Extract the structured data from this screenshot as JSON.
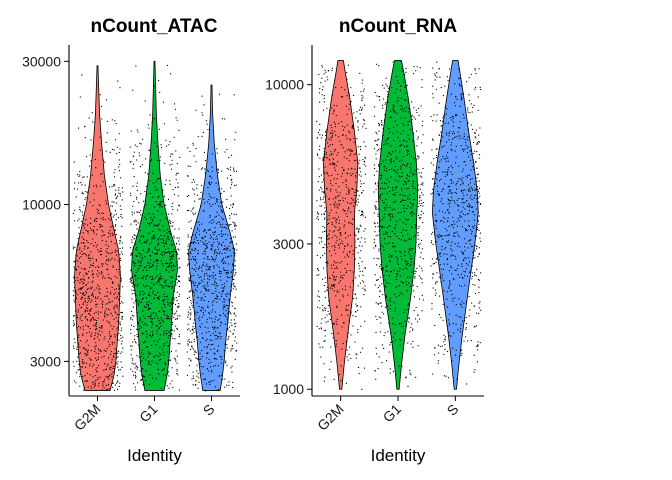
{
  "chart_data": [
    {
      "type": "violin",
      "title": "nCount_ATAC",
      "xlabel": "Identity",
      "ylabel": "",
      "y_scale": "log",
      "ylim": [
        2300,
        34000
      ],
      "yticks": [
        3000,
        10000,
        30000
      ],
      "ytick_labels": [
        "3000",
        "10000",
        "30000"
      ],
      "categories": [
        "G2M",
        "G1",
        "S"
      ],
      "colors": [
        "#F8766D",
        "#00BA38",
        "#619CFF"
      ],
      "jitter_points": true,
      "series": [
        {
          "category": "G2M",
          "min": 2400,
          "max": 29000,
          "density_profile": [
            [
              2400,
              0.55
            ],
            [
              2700,
              0.72
            ],
            [
              3000,
              0.8
            ],
            [
              3500,
              0.86
            ],
            [
              4000,
              0.92
            ],
            [
              5000,
              0.97
            ],
            [
              5800,
              1.0
            ],
            [
              7000,
              0.92
            ],
            [
              8500,
              0.68
            ],
            [
              10000,
              0.48
            ],
            [
              12500,
              0.3
            ],
            [
              16000,
              0.18
            ],
            [
              20000,
              0.09
            ],
            [
              29000,
              0.02
            ]
          ]
        },
        {
          "category": "G1",
          "min": 2400,
          "max": 30000,
          "density_profile": [
            [
              2400,
              0.42
            ],
            [
              2700,
              0.55
            ],
            [
              3000,
              0.62
            ],
            [
              3500,
              0.68
            ],
            [
              4000,
              0.74
            ],
            [
              5000,
              0.82
            ],
            [
              6000,
              1.0
            ],
            [
              7000,
              0.96
            ],
            [
              8000,
              0.72
            ],
            [
              10000,
              0.42
            ],
            [
              12500,
              0.25
            ],
            [
              16000,
              0.15
            ],
            [
              20000,
              0.08
            ],
            [
              30000,
              0.02
            ]
          ]
        },
        {
          "category": "S",
          "min": 2400,
          "max": 25000,
          "density_profile": [
            [
              2400,
              0.38
            ],
            [
              2700,
              0.48
            ],
            [
              3000,
              0.55
            ],
            [
              3500,
              0.62
            ],
            [
              4000,
              0.7
            ],
            [
              5000,
              0.82
            ],
            [
              6000,
              0.95
            ],
            [
              7000,
              1.0
            ],
            [
              8000,
              0.82
            ],
            [
              10000,
              0.45
            ],
            [
              12500,
              0.26
            ],
            [
              16000,
              0.12
            ],
            [
              20000,
              0.05
            ],
            [
              25000,
              0.02
            ]
          ]
        }
      ]
    },
    {
      "type": "violin",
      "title": "nCount_RNA",
      "xlabel": "Identity",
      "ylabel": "",
      "y_scale": "log",
      "ylim": [
        950,
        13500
      ],
      "yticks": [
        1000,
        3000,
        10000
      ],
      "ytick_labels": [
        "1000",
        "3000",
        "10000"
      ],
      "categories": [
        "G2M",
        "G1",
        "S"
      ],
      "colors": [
        "#F8766D",
        "#00BA38",
        "#619CFF"
      ],
      "jitter_points": true,
      "series": [
        {
          "category": "G2M",
          "min": 1000,
          "max": 12000,
          "density_profile": [
            [
              1000,
              0.05
            ],
            [
              1200,
              0.15
            ],
            [
              1500,
              0.3
            ],
            [
              2000,
              0.52
            ],
            [
              2500,
              0.6
            ],
            [
              3000,
              0.62
            ],
            [
              3800,
              0.6
            ],
            [
              4500,
              0.7
            ],
            [
              5500,
              0.75
            ],
            [
              7000,
              0.6
            ],
            [
              9000,
              0.4
            ],
            [
              11000,
              0.2
            ],
            [
              12000,
              0.12
            ]
          ]
        },
        {
          "category": "G1",
          "min": 1000,
          "max": 12000,
          "density_profile": [
            [
              1000,
              0.05
            ],
            [
              1200,
              0.15
            ],
            [
              1500,
              0.3
            ],
            [
              2000,
              0.55
            ],
            [
              2500,
              0.7
            ],
            [
              3000,
              0.78
            ],
            [
              3800,
              0.82
            ],
            [
              4500,
              0.86
            ],
            [
              5500,
              0.8
            ],
            [
              7000,
              0.65
            ],
            [
              9000,
              0.45
            ],
            [
              11000,
              0.25
            ],
            [
              12000,
              0.15
            ]
          ]
        },
        {
          "category": "S",
          "min": 1000,
          "max": 12000,
          "density_profile": [
            [
              1000,
              0.05
            ],
            [
              1200,
              0.15
            ],
            [
              1500,
              0.3
            ],
            [
              2000,
              0.52
            ],
            [
              2500,
              0.7
            ],
            [
              3000,
              0.85
            ],
            [
              3800,
              1.0
            ],
            [
              4500,
              0.95
            ],
            [
              5500,
              0.8
            ],
            [
              7000,
              0.58
            ],
            [
              9000,
              0.38
            ],
            [
              11000,
              0.2
            ],
            [
              12000,
              0.12
            ]
          ]
        }
      ]
    }
  ]
}
